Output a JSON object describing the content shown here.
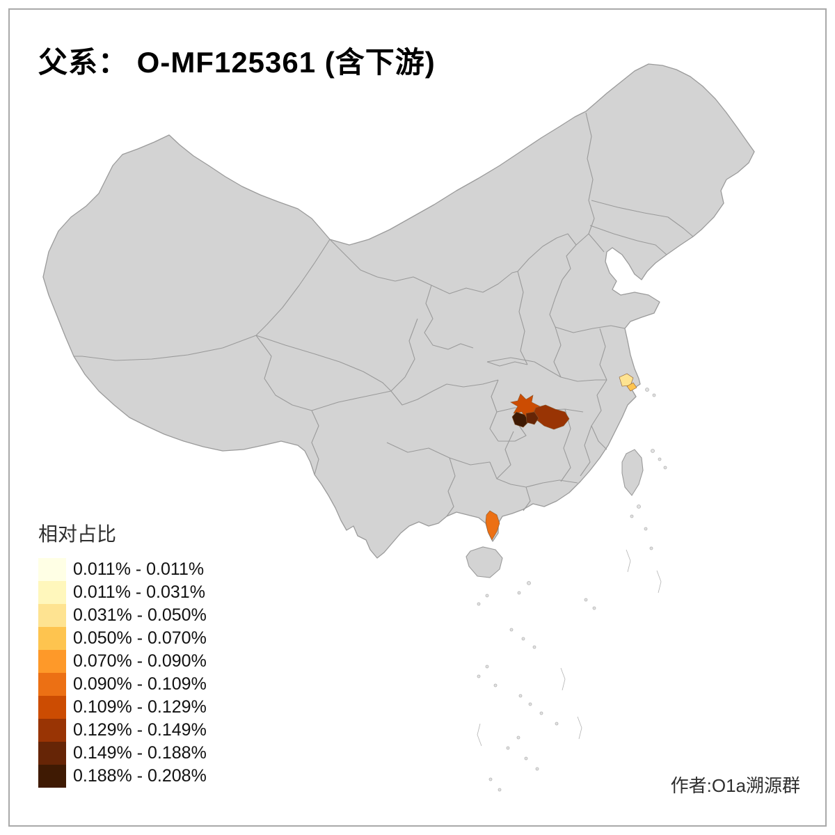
{
  "title": "父系： O-MF125361 (含下游)",
  "author": "作者:O1a溯源群",
  "legend": {
    "title": "相对占比",
    "items": [
      {
        "color": "#ffffe5",
        "range": "0.011% - 0.011%"
      },
      {
        "color": "#fff7bc",
        "range": "0.011% - 0.031%"
      },
      {
        "color": "#fee391",
        "range": "0.031% - 0.050%"
      },
      {
        "color": "#fec44f",
        "range": "0.050% - 0.070%"
      },
      {
        "color": "#fe9929",
        "range": "0.070% - 0.090%"
      },
      {
        "color": "#ec7014",
        "range": "0.090% - 0.109%"
      },
      {
        "color": "#cc4c02",
        "range": "0.109% - 0.129%"
      },
      {
        "color": "#993404",
        "range": "0.129% - 0.149%"
      },
      {
        "color": "#662506",
        "range": "0.149% - 0.188%"
      },
      {
        "color": "#3f1a03",
        "range": "0.188% - 0.208%"
      }
    ]
  },
  "map": {
    "base_fill": "#d3d3d3",
    "border_color": "#9a9a9a",
    "background": "#ffffff",
    "highlighted_regions": [
      {
        "id": "shanghai-coast-light",
        "color": "#fee391",
        "range": "0.031% - 0.050%"
      },
      {
        "id": "shanghai-coast-mid",
        "color": "#fec44f",
        "range": "0.050% - 0.070%"
      },
      {
        "id": "chongqing-star",
        "color": "#cc4c02",
        "range": "0.109% - 0.129%"
      },
      {
        "id": "central-dark-west",
        "color": "#3f1a03",
        "range": "0.188% - 0.208%"
      },
      {
        "id": "central-dark-east",
        "color": "#662506",
        "range": "0.149% - 0.188%"
      },
      {
        "id": "hunan-west-patch",
        "color": "#993404",
        "range": "0.129% - 0.149%"
      },
      {
        "id": "leizhou-peninsula",
        "color": "#ec7014",
        "range": "0.090% - 0.109%"
      }
    ]
  },
  "chart_data": {
    "type": "choropleth",
    "title": "父系： O-MF125361 (含下游)",
    "legend_title": "相对占比",
    "bins": [
      "0.011% - 0.011%",
      "0.011% - 0.031%",
      "0.031% - 0.050%",
      "0.050% - 0.070%",
      "0.070% - 0.090%",
      "0.090% - 0.109%",
      "0.109% - 0.129%",
      "0.129% - 0.149%",
      "0.149% - 0.188%",
      "0.188% - 0.208%"
    ],
    "bin_colors": [
      "#ffffe5",
      "#fff7bc",
      "#fee391",
      "#fec44f",
      "#fe9929",
      "#ec7014",
      "#cc4c02",
      "#993404",
      "#662506",
      "#3f1a03"
    ],
    "highlighted_regions": [
      {
        "region": "shanghai-coast-light",
        "bin": "0.031% - 0.050%"
      },
      {
        "region": "shanghai-coast-mid",
        "bin": "0.050% - 0.070%"
      },
      {
        "region": "chongqing-star",
        "bin": "0.109% - 0.129%"
      },
      {
        "region": "central-dark-west",
        "bin": "0.188% - 0.208%"
      },
      {
        "region": "central-dark-east",
        "bin": "0.149% - 0.188%"
      },
      {
        "region": "hunan-west-patch",
        "bin": "0.129% - 0.149%"
      },
      {
        "region": "leizhou-peninsula",
        "bin": "0.090% - 0.109%"
      }
    ],
    "annotation": "作者:O1a溯源群"
  }
}
